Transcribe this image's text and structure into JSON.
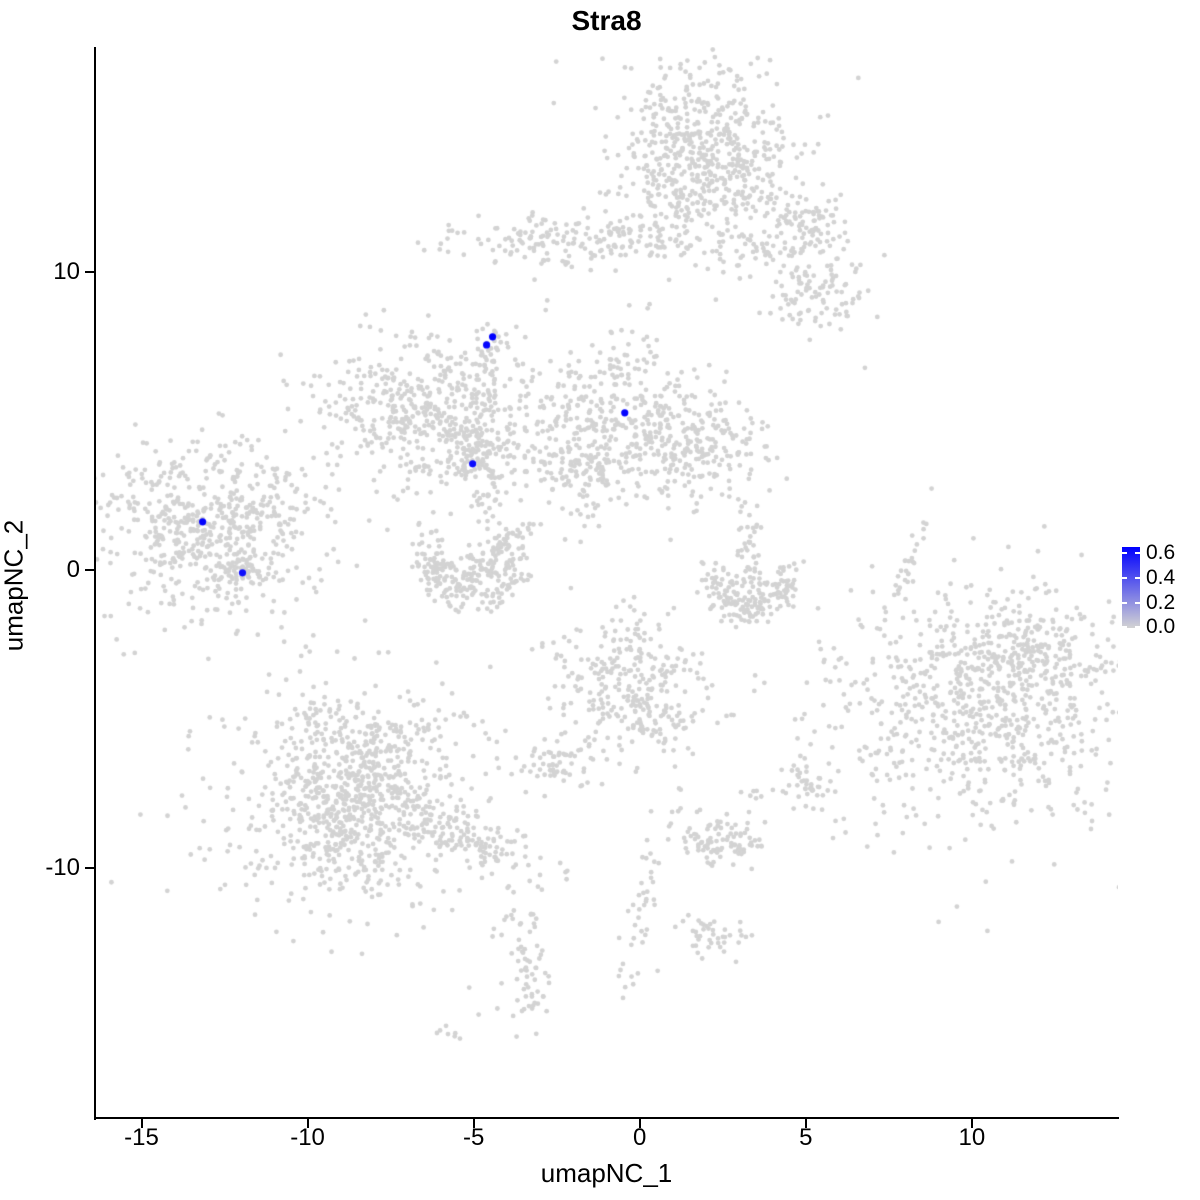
{
  "title": "Stra8",
  "axes": {
    "x": {
      "label": "umapNC_1",
      "ticks": [
        "-15",
        "-10",
        "-5",
        "0",
        "5",
        "10"
      ],
      "tick_values": [
        -15,
        -10,
        -5,
        0,
        5,
        10
      ]
    },
    "y": {
      "label": "umapNC_2",
      "ticks": [
        "10",
        "0",
        "-10"
      ],
      "tick_values": [
        10,
        0,
        -10
      ]
    }
  },
  "legend": {
    "ticks": [
      {
        "label": "0.6",
        "value": 0.6
      },
      {
        "label": "0.4",
        "value": 0.4
      },
      {
        "label": "0.2",
        "value": 0.2
      },
      {
        "label": "0.0",
        "value": 0.0
      }
    ],
    "low_color": "#D3D3D3",
    "high_color": "#0000FF",
    "scale_max": 0.65
  },
  "style": {
    "point_color": "#D3D3D3",
    "highlight_color": "#0000FF",
    "axis_color": "#000000",
    "point_radius": 2.4,
    "highlight_radius": 3.6,
    "seed": 42
  },
  "chart_data": {
    "type": "scatter",
    "title": "Stra8",
    "xlabel": "umapNC_1",
    "ylabel": "umapNC_2",
    "xlim": [
      -16.4,
      14.4
    ],
    "ylim": [
      -18.4,
      17.55
    ],
    "grid": false,
    "legend_position": "right",
    "expression_scale": {
      "min": 0.0,
      "max": 0.65,
      "ticks": [
        0.6,
        0.4,
        0.2,
        0.0
      ]
    },
    "highlighted_cells": [
      {
        "x": -4.61,
        "y": 7.55,
        "value": 0.63
      },
      {
        "x": -4.43,
        "y": 7.82,
        "value": 0.65
      },
      {
        "x": -0.45,
        "y": 5.27,
        "value": 0.64
      },
      {
        "x": -5.03,
        "y": 3.56,
        "value": 0.62
      },
      {
        "x": -13.16,
        "y": 1.61,
        "value": 0.64
      },
      {
        "x": -11.96,
        "y": -0.1,
        "value": 0.6
      }
    ],
    "background_clusters": [
      {
        "name": "top-core",
        "type": "gauss",
        "cx": 1.75,
        "cy": 14.16,
        "sx": 1.3,
        "sy": 1.35,
        "n": 420
      },
      {
        "name": "top-fringe",
        "type": "gauss",
        "cx": 1.84,
        "cy": 13.69,
        "sx": 1.75,
        "sy": 1.7,
        "n": 130
      },
      {
        "name": "top-tail",
        "type": "gauss",
        "cx": 3.7,
        "cy": 12.25,
        "sx": 1.5,
        "sy": 0.45,
        "rot": -35,
        "n": 80
      },
      {
        "name": "tail-clump",
        "type": "gauss",
        "cx": 5.3,
        "cy": 11.68,
        "sx": 0.5,
        "sy": 0.45,
        "n": 40
      },
      {
        "name": "tail-scatter",
        "type": "gauss",
        "cx": 4.1,
        "cy": 10.67,
        "sx": 0.75,
        "sy": 0.5,
        "n": 28
      },
      {
        "name": "lowright-clump",
        "type": "gauss",
        "cx": 5.39,
        "cy": 9.33,
        "sx": 0.75,
        "sy": 0.8,
        "n": 100
      },
      {
        "name": "between-dots",
        "type": "gauss",
        "cx": 0.78,
        "cy": 12.01,
        "sx": 0.7,
        "sy": 0.4,
        "n": 16
      },
      {
        "name": "band",
        "type": "gauss",
        "cx": -0.93,
        "cy": 11.07,
        "sx": 2.4,
        "sy": 0.42,
        "n": 190
      },
      {
        "name": "band-left-tip",
        "type": "gauss",
        "cx": -3.67,
        "cy": 11.17,
        "sx": 0.4,
        "sy": 0.25,
        "n": 12
      },
      {
        "name": "band-below",
        "type": "gauss",
        "cx": -2.38,
        "cy": 10.34,
        "sx": 0.5,
        "sy": 0.25,
        "n": 10
      },
      {
        "name": "midleft-blob",
        "type": "gauss",
        "cx": -6.6,
        "cy": 5.3,
        "sx": 1.45,
        "sy": 1.15,
        "n": 350
      },
      {
        "name": "midleft-halo",
        "type": "gauss",
        "cx": -6.75,
        "cy": 5.7,
        "sx": 1.85,
        "sy": 1.5,
        "n": 85
      },
      {
        "name": "midleft-arm",
        "type": "gauss",
        "cx": -4.55,
        "cy": 4.26,
        "sx": 0.95,
        "sy": 0.3,
        "rot": -12,
        "n": 55
      },
      {
        "name": "midleft-topdots",
        "type": "gauss",
        "cx": -5.24,
        "cy": 6.78,
        "sx": 0.55,
        "sy": 0.5,
        "n": 18
      },
      {
        "name": "chain-up",
        "type": "gauss",
        "cx": -4.43,
        "cy": 6.58,
        "sx": 0.22,
        "sy": 1.05,
        "rot": -8,
        "n": 24
      },
      {
        "name": "blue-pair-clump",
        "type": "gauss",
        "cx": -4.61,
        "cy": 7.38,
        "sx": 0.3,
        "sy": 0.35,
        "n": 13
      },
      {
        "name": "mid-main",
        "type": "gauss",
        "cx": -0.81,
        "cy": 5.03,
        "sx": 1.45,
        "sy": 1.35,
        "n": 390
      },
      {
        "name": "mid-right-ext",
        "type": "gauss",
        "cx": 1.6,
        "cy": 4.16,
        "sx": 1.15,
        "sy": 0.85,
        "n": 185
      },
      {
        "name": "mid-bottom-tail",
        "type": "gauss",
        "cx": -1.72,
        "cy": 3.36,
        "sx": 0.6,
        "sy": 0.45,
        "n": 45
      },
      {
        "name": "mid-chain-down",
        "type": "gauss",
        "cx": -1.87,
        "cy": 1.95,
        "sx": 0.28,
        "sy": 0.85,
        "n": 18
      },
      {
        "name": "center-clump",
        "type": "gauss",
        "cx": -4.88,
        "cy": 3.66,
        "sx": 0.75,
        "sy": 0.5,
        "n": 85
      },
      {
        "name": "center-chain",
        "type": "gauss",
        "cx": -4.52,
        "cy": 1.95,
        "sx": 0.25,
        "sy": 1.05,
        "n": 28
      },
      {
        "name": "bowl-arc",
        "type": "arc",
        "cx": -5.06,
        "cy": 0.44,
        "r": 1.35,
        "a0": 150,
        "a1": 395,
        "w": 0.3,
        "n": 150
      },
      {
        "name": "bowl-fill",
        "type": "arc",
        "cx": -5.06,
        "cy": 0.44,
        "r": 0.9,
        "a0": 190,
        "a1": 350,
        "w": 0.4,
        "n": 85
      },
      {
        "name": "bowl-arm",
        "type": "gauss",
        "cx": -3.89,
        "cy": 1.01,
        "sx": 0.55,
        "sy": 0.22,
        "rot": 40,
        "n": 38
      },
      {
        "name": "bowl-leftdots",
        "type": "gauss",
        "cx": -5.99,
        "cy": 1.31,
        "sx": 0.5,
        "sy": 0.28,
        "n": 10
      },
      {
        "name": "left-main",
        "type": "gauss",
        "cx": -13.07,
        "cy": 1.41,
        "sx": 1.6,
        "sy": 1.45,
        "n": 470
      },
      {
        "name": "left-halo",
        "type": "gauss",
        "cx": -12.98,
        "cy": 1.28,
        "sx": 2.05,
        "sy": 1.8,
        "n": 95
      },
      {
        "name": "left-arm-ne",
        "type": "gauss",
        "cx": -11.81,
        "cy": 2.35,
        "sx": 0.7,
        "sy": 0.28,
        "rot": 50,
        "n": 32
      },
      {
        "name": "left-subblob",
        "type": "gauss",
        "cx": -11.93,
        "cy": -0.1,
        "sx": 0.55,
        "sy": 0.45,
        "n": 55
      },
      {
        "name": "rightC-arc",
        "type": "arc",
        "cx": 3.34,
        "cy": -0.23,
        "r": 1.15,
        "a0": 155,
        "a1": 380,
        "w": 0.28,
        "n": 135
      },
      {
        "name": "rightC-arm",
        "type": "gauss",
        "cx": 3.28,
        "cy": 0.81,
        "sx": 0.25,
        "sy": 0.75,
        "n": 42
      },
      {
        "name": "rightC-fill",
        "type": "arc",
        "cx": 3.34,
        "cy": -0.23,
        "r": 0.75,
        "a0": 200,
        "a1": 340,
        "w": 0.3,
        "n": 35
      },
      {
        "name": "thin-sliver",
        "type": "gauss",
        "cx": 8.04,
        "cy": 0.23,
        "sx": 0.13,
        "sy": 0.95,
        "rot": -18,
        "n": 26
      },
      {
        "name": "right-main",
        "type": "gauss",
        "cx": 10.21,
        "cy": -4.56,
        "sx": 2.2,
        "sy": 2.05,
        "n": 640
      },
      {
        "name": "right-top-lobe",
        "type": "gauss",
        "cx": 11.72,
        "cy": -2.68,
        "sx": 1.25,
        "sy": 0.8,
        "n": 175
      },
      {
        "name": "right-fringe",
        "type": "gauss",
        "cx": 10.12,
        "cy": -4.36,
        "sx": 2.65,
        "sy": 2.45,
        "n": 110
      },
      {
        "name": "centerbottom",
        "type": "gauss",
        "cx": -0.27,
        "cy": -3.62,
        "sx": 1.15,
        "sy": 1.25,
        "n": 255
      },
      {
        "name": "centerbottom-tail",
        "type": "gauss",
        "cx": 0.63,
        "cy": -5.1,
        "sx": 0.5,
        "sy": 0.55,
        "n": 48
      },
      {
        "name": "small-blob-left",
        "type": "gauss",
        "cx": -2.44,
        "cy": -6.44,
        "sx": 0.5,
        "sy": 0.45,
        "n": 62
      },
      {
        "name": "small-blob-right",
        "type": "gauss",
        "cx": 5.0,
        "cy": -7.11,
        "sx": 0.38,
        "sy": 0.38,
        "n": 38
      },
      {
        "name": "small-sliver",
        "type": "gauss",
        "cx": 3.37,
        "cy": -7.45,
        "sx": 0.3,
        "sy": 0.1,
        "rot": -35,
        "n": 6
      },
      {
        "name": "dot-pair-a",
        "type": "gauss",
        "cx": 2.8,
        "cy": -5.0,
        "sx": 0.18,
        "sy": 0.14,
        "n": 3
      },
      {
        "name": "oval-mid",
        "type": "gauss",
        "cx": 2.41,
        "cy": -9.03,
        "sx": 0.8,
        "sy": 0.4,
        "rot": -8,
        "n": 100
      },
      {
        "name": "oval-low",
        "type": "gauss",
        "cx": 2.29,
        "cy": -12.32,
        "sx": 0.45,
        "sy": 0.33,
        "n": 38
      },
      {
        "name": "dot-pair-b",
        "type": "gauss",
        "cx": 1.42,
        "cy": -11.81,
        "sx": 0.15,
        "sy": 0.13,
        "n": 3
      },
      {
        "name": "botleft-main",
        "type": "gauss",
        "cx": -8.4,
        "cy": -7.62,
        "sx": 2.05,
        "sy": 1.95,
        "n": 540
      },
      {
        "name": "botleft-core",
        "type": "gauss",
        "cx": -8.77,
        "cy": -8.22,
        "sx": 1.15,
        "sy": 1.1,
        "n": 270
      },
      {
        "name": "botleft-top",
        "type": "gauss",
        "cx": -8.7,
        "cy": -5.81,
        "sx": 1.4,
        "sy": 0.7,
        "n": 125
      },
      {
        "name": "botleft-arm",
        "type": "gauss",
        "cx": -5.15,
        "cy": -8.99,
        "sx": 1.5,
        "sy": 0.4,
        "rot": -25,
        "n": 135
      },
      {
        "name": "botleft-tail",
        "type": "gauss",
        "cx": -3.64,
        "cy": -11.74,
        "sx": 0.3,
        "sy": 0.65,
        "rot": -15,
        "n": 20
      },
      {
        "name": "bottom-oval",
        "type": "gauss",
        "cx": -3.43,
        "cy": -13.69,
        "sx": 0.33,
        "sy": 0.9,
        "n": 52
      },
      {
        "name": "bottom-sliver",
        "type": "gauss",
        "cx": -5.84,
        "cy": -15.44,
        "sx": 0.35,
        "sy": 0.1,
        "rot": -35,
        "n": 7
      },
      {
        "name": "bottom-stream",
        "type": "gauss",
        "cx": 0.03,
        "cy": -11.41,
        "sx": 0.22,
        "sy": 1.85,
        "rot": -12,
        "n": 42
      },
      {
        "name": "singletons",
        "type": "points",
        "pts": [
          [
            -2.83,
            8.72
          ],
          [
            5.12,
            7.72
          ],
          [
            6.78,
            6.78
          ],
          [
            -10.72,
            6.34
          ],
          [
            -10.63,
            6.21
          ],
          [
            7.83,
            -0.6
          ],
          [
            -4.85,
            -14.93
          ],
          [
            0.54,
            -13.46
          ],
          [
            2.05,
            10.1
          ]
        ]
      }
    ]
  }
}
